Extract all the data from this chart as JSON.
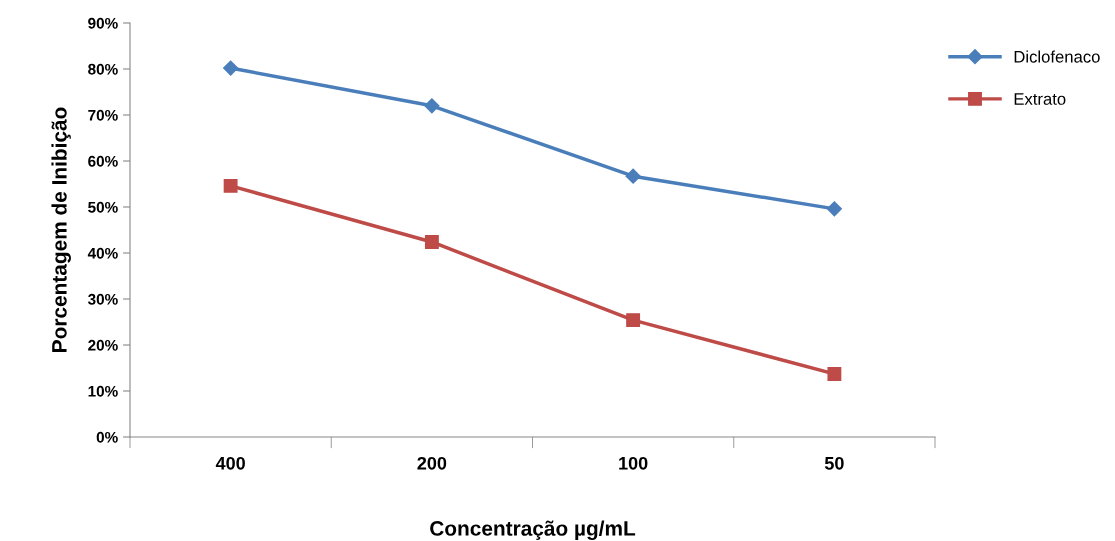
{
  "chart_data": {
    "type": "line",
    "xlabel": "Concentração µg/mL",
    "ylabel": "Porcentagem de Inibição",
    "categories": [
      "400",
      "200",
      "100",
      "50"
    ],
    "series": [
      {
        "name": "Diclofenaco",
        "color": "#4a7ebb",
        "marker": "diamond",
        "values": [
          80.2,
          72.0,
          56.7,
          49.6
        ]
      },
      {
        "name": "Extrato",
        "color": "#be4b48",
        "marker": "square",
        "values": [
          54.6,
          42.4,
          25.4,
          13.7
        ]
      }
    ],
    "ylim": [
      0,
      90
    ],
    "yticks": [
      {
        "value": 0,
        "label": "0%"
      },
      {
        "value": 10,
        "label": "10%"
      },
      {
        "value": 20,
        "label": "20%"
      },
      {
        "value": 30,
        "label": "30%"
      },
      {
        "value": 40,
        "label": "40%"
      },
      {
        "value": 50,
        "label": "50%"
      },
      {
        "value": 60,
        "label": "60%"
      },
      {
        "value": 70,
        "label": "70%"
      },
      {
        "value": 80,
        "label": "80%"
      },
      {
        "value": 90,
        "label": "90%"
      }
    ],
    "grid": false,
    "legend": "top right",
    "line_style": "solid"
  }
}
